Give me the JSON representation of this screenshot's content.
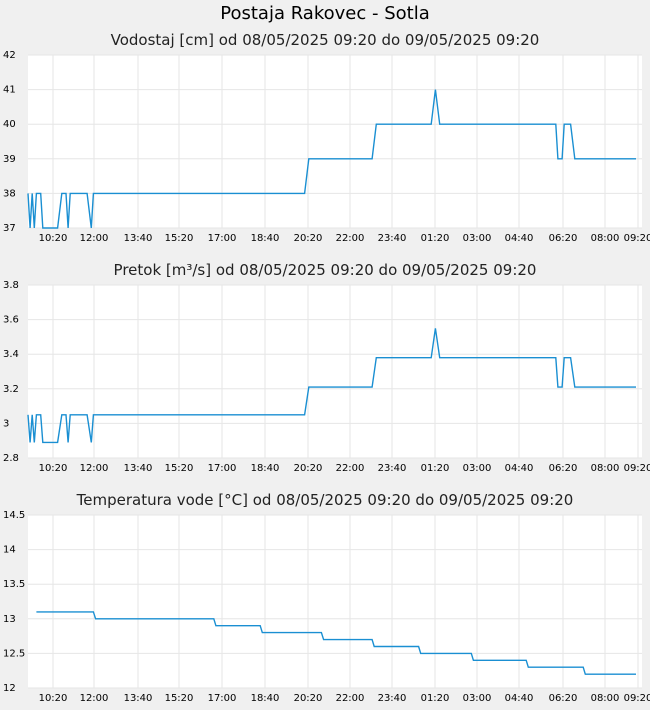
{
  "title": "Postaja Rakovec - Sotla",
  "chart_data": [
    {
      "type": "line",
      "title": "Vodostaj [cm] od 08/05/2025 09:20 do 09/05/2025 09:20",
      "x_range": [
        "08/05/2025 09:20",
        "09/05/2025 09:20"
      ],
      "x_tick_labels": [
        "10:20",
        "12:00",
        "13:40",
        "15:20",
        "17:00",
        "18:40",
        "20:20",
        "22:00",
        "23:40",
        "01:20",
        "03:00",
        "04:40",
        "06:20",
        "08:00",
        "09:20"
      ],
      "y_tick_labels": [
        "37",
        "38",
        "39",
        "40",
        "41",
        "42"
      ],
      "ylim": [
        37,
        42
      ],
      "grid": true,
      "series": [
        {
          "color": "#1a8fd2",
          "points": [
            [
              "08/05/2025 09:20",
              38
            ],
            [
              "08/05/2025 09:25",
              37
            ],
            [
              "08/05/2025 09:30",
              38
            ],
            [
              "08/05/2025 09:35",
              37
            ],
            [
              "08/05/2025 09:40",
              38
            ],
            [
              "08/05/2025 09:50",
              38
            ],
            [
              "08/05/2025 09:55",
              37
            ],
            [
              "08/05/2025 10:30",
              37
            ],
            [
              "08/05/2025 10:40",
              38
            ],
            [
              "08/05/2025 10:50",
              38
            ],
            [
              "08/05/2025 10:55",
              37
            ],
            [
              "08/05/2025 11:00",
              38
            ],
            [
              "08/05/2025 11:40",
              38
            ],
            [
              "08/05/2025 11:50",
              37
            ],
            [
              "08/05/2025 11:55",
              38
            ],
            [
              "08/05/2025 20:15",
              38
            ],
            [
              "08/05/2025 20:25",
              39
            ],
            [
              "08/05/2025 22:55",
              39
            ],
            [
              "08/05/2025 23:05",
              40
            ],
            [
              "09/05/2025 01:15",
              40
            ],
            [
              "09/05/2025 01:25",
              41
            ],
            [
              "09/05/2025 01:35",
              40
            ],
            [
              "09/05/2025 06:10",
              40
            ],
            [
              "09/05/2025 06:15",
              39
            ],
            [
              "09/05/2025 06:25",
              39
            ],
            [
              "09/05/2025 06:30",
              40
            ],
            [
              "09/05/2025 06:45",
              40
            ],
            [
              "09/05/2025 06:55",
              39
            ],
            [
              "09/05/2025 09:20",
              39
            ]
          ]
        }
      ]
    },
    {
      "type": "line",
      "title": "Pretok [m³/s] od 08/05/2025 09:20 do 09/05/2025 09:20",
      "x_range": [
        "08/05/2025 09:20",
        "09/05/2025 09:20"
      ],
      "x_tick_labels": [
        "10:20",
        "12:00",
        "13:40",
        "15:20",
        "17:00",
        "18:40",
        "20:20",
        "22:00",
        "23:40",
        "01:20",
        "03:00",
        "04:40",
        "06:20",
        "08:00",
        "09:20"
      ],
      "y_tick_labels": [
        "2.8",
        "3",
        "3.2",
        "3.4",
        "3.6",
        "3.8"
      ],
      "ylim": [
        2.8,
        3.8
      ],
      "grid": true,
      "series": [
        {
          "color": "#1a8fd2",
          "points": [
            [
              "08/05/2025 09:20",
              3.05
            ],
            [
              "08/05/2025 09:25",
              2.89
            ],
            [
              "08/05/2025 09:30",
              3.05
            ],
            [
              "08/05/2025 09:35",
              2.89
            ],
            [
              "08/05/2025 09:40",
              3.05
            ],
            [
              "08/05/2025 09:50",
              3.05
            ],
            [
              "08/05/2025 09:55",
              2.89
            ],
            [
              "08/05/2025 10:30",
              2.89
            ],
            [
              "08/05/2025 10:40",
              3.05
            ],
            [
              "08/05/2025 10:50",
              3.05
            ],
            [
              "08/05/2025 10:55",
              2.89
            ],
            [
              "08/05/2025 11:00",
              3.05
            ],
            [
              "08/05/2025 11:40",
              3.05
            ],
            [
              "08/05/2025 11:50",
              2.89
            ],
            [
              "08/05/2025 11:55",
              3.05
            ],
            [
              "08/05/2025 20:15",
              3.05
            ],
            [
              "08/05/2025 20:25",
              3.21
            ],
            [
              "08/05/2025 22:55",
              3.21
            ],
            [
              "08/05/2025 23:05",
              3.38
            ],
            [
              "09/05/2025 01:15",
              3.38
            ],
            [
              "09/05/2025 01:25",
              3.55
            ],
            [
              "09/05/2025 01:35",
              3.38
            ],
            [
              "09/05/2025 06:10",
              3.38
            ],
            [
              "09/05/2025 06:15",
              3.21
            ],
            [
              "09/05/2025 06:25",
              3.21
            ],
            [
              "09/05/2025 06:30",
              3.38
            ],
            [
              "09/05/2025 06:45",
              3.38
            ],
            [
              "09/05/2025 06:55",
              3.21
            ],
            [
              "09/05/2025 09:20",
              3.21
            ]
          ]
        }
      ]
    },
    {
      "type": "line",
      "title": "Temperatura vode [°C] od 08/05/2025 09:20 do 09/05/2025 09:20",
      "x_range": [
        "08/05/2025 09:20",
        "09/05/2025 09:20"
      ],
      "x_tick_labels": [
        "10:20",
        "12:00",
        "13:40",
        "15:20",
        "17:00",
        "18:40",
        "20:20",
        "22:00",
        "23:40",
        "01:20",
        "03:00",
        "04:40",
        "06:20",
        "08:00",
        "09:20"
      ],
      "y_tick_labels": [
        "12",
        "12.5",
        "13",
        "13.5",
        "14",
        "14.5"
      ],
      "ylim": [
        12,
        14.5
      ],
      "grid": true,
      "series": [
        {
          "color": "#1a8fd2",
          "points": [
            [
              "08/05/2025 09:40",
              13.1
            ],
            [
              "08/05/2025 11:55",
              13.1
            ],
            [
              "08/05/2025 12:00",
              13.0
            ],
            [
              "08/05/2025 16:40",
              13.0
            ],
            [
              "08/05/2025 16:45",
              12.9
            ],
            [
              "08/05/2025 18:30",
              12.9
            ],
            [
              "08/05/2025 18:35",
              12.8
            ],
            [
              "08/05/2025 20:55",
              12.8
            ],
            [
              "08/05/2025 21:00",
              12.7
            ],
            [
              "08/05/2025 22:55",
              12.7
            ],
            [
              "08/05/2025 23:00",
              12.6
            ],
            [
              "09/05/2025 00:45",
              12.6
            ],
            [
              "09/05/2025 00:50",
              12.5
            ],
            [
              "09/05/2025 02:50",
              12.5
            ],
            [
              "09/05/2025 02:55",
              12.4
            ],
            [
              "09/05/2025 05:00",
              12.4
            ],
            [
              "09/05/2025 05:05",
              12.3
            ],
            [
              "09/05/2025 07:15",
              12.3
            ],
            [
              "09/05/2025 07:20",
              12.2
            ],
            [
              "09/05/2025 09:20",
              12.2
            ]
          ]
        }
      ]
    }
  ]
}
